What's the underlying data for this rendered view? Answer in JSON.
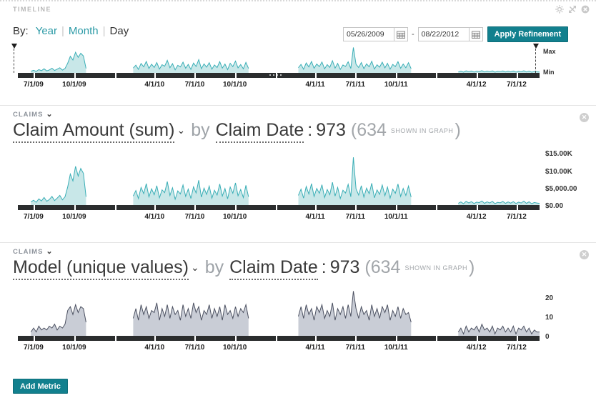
{
  "header": {
    "title": "TIMELINE"
  },
  "controls": {
    "by_label": "By:",
    "granularity": [
      {
        "label": "Year"
      },
      {
        "label": "Month"
      },
      {
        "label": "Day"
      }
    ],
    "date_from": "05/26/2009",
    "date_to": "08/22/2012",
    "range_separator": "-",
    "apply_label": "Apply Refinement"
  },
  "timeline": {
    "max_label": "Max",
    "min_label": "Min"
  },
  "panels": [
    {
      "source": "CLAIMS",
      "chevron": "⌄",
      "metric": "Claim Amount (sum)",
      "caret": "⌄",
      "by_word": "by",
      "dimension": "Claim Date",
      "colon": ":",
      "total": "973",
      "lparen": "(",
      "shown": "634",
      "shown_note": "SHOWN IN GRAPH",
      "rparen": ")"
    },
    {
      "source": "CLAIMS",
      "chevron": "⌄",
      "metric": "Model (unique values)",
      "caret": "⌄",
      "by_word": "by",
      "dimension": "Claim Date",
      "colon": ":",
      "total": "973",
      "lparen": "(",
      "shown": "634",
      "shown_note": "SHOWN IN GRAPH",
      "rparen": ")"
    }
  ],
  "add_metric_label": "Add Metric",
  "colors": {
    "accent": "#12808E",
    "teal_link": "#2B9AA6",
    "teal_line": "#39AEB6",
    "teal_fill": "#C8E7E8",
    "gray_line": "#4B5060",
    "gray_fill": "#C9CDD6",
    "axis_bar": "#2B2D2E"
  },
  "axis": {
    "x_ticks": [
      {
        "pct": 3.0,
        "label": "7/1/09"
      },
      {
        "pct": 10.8,
        "label": "10/1/09"
      },
      {
        "pct": 26.2,
        "label": "4/1/10"
      },
      {
        "pct": 33.9,
        "label": "7/1/10"
      },
      {
        "pct": 41.6,
        "label": "10/1/10"
      },
      {
        "pct": 57.0,
        "label": "4/1/11"
      },
      {
        "pct": 64.7,
        "label": "7/1/11"
      },
      {
        "pct": 72.5,
        "label": "10/1/11"
      },
      {
        "pct": 87.9,
        "label": "4/1/12"
      },
      {
        "pct": 95.6,
        "label": "7/1/12"
      }
    ],
    "bar_gaps": [
      3.0,
      10.8,
      18.6,
      26.2,
      33.9,
      41.6,
      49.4,
      57.0,
      64.7,
      72.5,
      80.1,
      87.9,
      95.6
    ]
  },
  "chart_data": [
    {
      "id": "timeline_overview",
      "type": "area",
      "title": "Timeline overview (Claim Amount by Claim Date)",
      "x_range": [
        "05/26/2009",
        "08/22/2012"
      ],
      "ymax": 15500,
      "height": 40,
      "y_axis_labels": [
        "Max",
        "Min"
      ],
      "gap_dots_pct": 48.2,
      "color_line": "#39AEB6",
      "color_fill": "#C8E7E8",
      "values": [
        null,
        null,
        null,
        null,
        null,
        900,
        1400,
        800,
        1800,
        1200,
        2200,
        1100,
        1600,
        2500,
        1300,
        2000,
        2800,
        1500,
        2400,
        5200,
        9000,
        7000,
        11200,
        8400,
        10600,
        9200,
        2400,
        null,
        null,
        null,
        null,
        null,
        null,
        null,
        null,
        null,
        null,
        null,
        null,
        null,
        null,
        null,
        null,
        null,
        2600,
        4200,
        1900,
        5100,
        3300,
        6200,
        2400,
        4700,
        3000,
        5600,
        2100,
        4400,
        3600,
        6800,
        2800,
        5000,
        1700,
        4100,
        3200,
        5800,
        2500,
        4600,
        1900,
        5300,
        3500,
        7200,
        2300,
        4900,
        3100,
        5500,
        2000,
        4300,
        2900,
        6100,
        2600,
        4800,
        1800,
        5200,
        3400,
        6400,
        2700,
        4500,
        2200,
        5700,
        2400,
        null,
        null,
        null,
        null,
        null,
        null,
        null,
        null,
        null,
        null,
        null,
        null,
        null,
        null,
        null,
        null,
        null,
        null,
        2800,
        4600,
        2000,
        5400,
        3200,
        6200,
        2500,
        4800,
        3400,
        5900,
        2200,
        4500,
        3000,
        6600,
        2600,
        5100,
        1900,
        4300,
        3500,
        6000,
        2400,
        13800,
        4700,
        2900,
        5600,
        2300,
        4900,
        3300,
        6300,
        2100,
        4400,
        3100,
        5800,
        2700,
        5200,
        2000,
        4600,
        3400,
        6100,
        2500,
        4800,
        2800,
        5500,
        2300,
        null,
        null,
        null,
        null,
        null,
        null,
        null,
        null,
        null,
        null,
        null,
        null,
        null,
        null,
        null,
        null,
        null,
        500,
        900,
        400,
        1100,
        600,
        1000,
        450,
        850,
        700,
        1200,
        500,
        950,
        600,
        1100,
        400,
        800,
        650,
        1050,
        500,
        900,
        550,
        1000,
        450,
        850,
        600,
        1150,
        500,
        950,
        400,
        750,
        600,
        500
      ]
    },
    {
      "id": "claim_amount",
      "type": "area",
      "title": "Claim Amount (sum) by Claim Date",
      "total": 973,
      "shown_in_graph": 634,
      "ymax": 15500,
      "height": 75,
      "color_line": "#39AEB6",
      "color_fill": "#C8E7E8",
      "y_ticks": [
        {
          "value": 15000,
          "label": "$15.00K"
        },
        {
          "value": 10000,
          "label": "$10.00K"
        },
        {
          "value": 5000,
          "label": "$5,000.00"
        },
        {
          "value": 0,
          "label": "$0.00"
        }
      ],
      "values": [
        null,
        null,
        null,
        null,
        null,
        900,
        1400,
        800,
        1800,
        1200,
        2200,
        1100,
        1600,
        2500,
        1300,
        2000,
        2800,
        1500,
        2400,
        5200,
        9000,
        7000,
        11200,
        8400,
        10600,
        9200,
        2400,
        null,
        null,
        null,
        null,
        null,
        null,
        null,
        null,
        null,
        null,
        null,
        null,
        null,
        null,
        null,
        null,
        null,
        2600,
        4200,
        1900,
        5100,
        3300,
        6200,
        2400,
        4700,
        3000,
        5600,
        2100,
        4400,
        3600,
        6800,
        2800,
        5000,
        1700,
        4100,
        3200,
        5800,
        2500,
        4600,
        1900,
        5300,
        3500,
        7200,
        2300,
        4900,
        3100,
        5500,
        2000,
        4300,
        2900,
        6100,
        2600,
        4800,
        1800,
        5200,
        3400,
        6400,
        2700,
        4500,
        2200,
        5700,
        2400,
        null,
        null,
        null,
        null,
        null,
        null,
        null,
        null,
        null,
        null,
        null,
        null,
        null,
        null,
        null,
        null,
        null,
        null,
        2800,
        4600,
        2000,
        5400,
        3200,
        6200,
        2500,
        4800,
        3400,
        5900,
        2200,
        4500,
        3000,
        6600,
        2600,
        5100,
        1900,
        4300,
        3500,
        6000,
        2400,
        13800,
        4700,
        2900,
        5600,
        2300,
        4900,
        3300,
        6300,
        2100,
        4400,
        3100,
        5800,
        2700,
        5200,
        2000,
        4600,
        3400,
        6100,
        2500,
        4800,
        2800,
        5500,
        2300,
        null,
        null,
        null,
        null,
        null,
        null,
        null,
        null,
        null,
        null,
        null,
        null,
        null,
        null,
        null,
        null,
        null,
        500,
        900,
        400,
        1100,
        600,
        1000,
        450,
        850,
        700,
        1200,
        500,
        950,
        600,
        1100,
        400,
        800,
        650,
        1050,
        500,
        900,
        550,
        1000,
        450,
        850,
        600,
        1150,
        500,
        950,
        400,
        750,
        600,
        500
      ]
    },
    {
      "id": "model_unique",
      "type": "area",
      "title": "Model (unique values) by Claim Date",
      "total": 973,
      "shown_in_graph": 634,
      "ymax": 25,
      "height": 68,
      "color_line": "#4B5060",
      "color_fill": "#C9CDD6",
      "y_ticks": [
        {
          "value": 20,
          "label": "20"
        },
        {
          "value": 10,
          "label": "10"
        },
        {
          "value": 0,
          "label": "0"
        }
      ],
      "values": [
        null,
        null,
        null,
        null,
        null,
        2,
        4,
        2,
        5,
        3,
        4,
        3,
        5,
        4,
        6,
        3,
        5,
        4,
        6,
        13,
        15,
        11,
        16,
        12,
        15,
        14,
        7,
        null,
        null,
        null,
        null,
        null,
        null,
        null,
        null,
        null,
        null,
        null,
        null,
        null,
        null,
        null,
        null,
        null,
        9,
        14,
        8,
        16,
        11,
        15,
        9,
        13,
        12,
        17,
        8,
        14,
        10,
        16,
        9,
        15,
        11,
        13,
        8,
        16,
        10,
        14,
        9,
        17,
        12,
        15,
        8,
        13,
        11,
        16,
        9,
        14,
        10,
        15,
        8,
        16,
        11,
        13,
        9,
        15,
        10,
        14,
        12,
        16,
        9,
        null,
        null,
        null,
        null,
        null,
        null,
        null,
        null,
        null,
        null,
        null,
        null,
        null,
        null,
        null,
        null,
        null,
        null,
        10,
        15,
        9,
        16,
        11,
        14,
        8,
        15,
        12,
        16,
        9,
        13,
        10,
        17,
        8,
        14,
        11,
        15,
        9,
        16,
        10,
        23,
        14,
        9,
        15,
        11,
        13,
        8,
        16,
        10,
        14,
        9,
        15,
        12,
        16,
        8,
        13,
        10,
        15,
        9,
        14,
        11,
        12,
        7,
        null,
        null,
        null,
        null,
        null,
        null,
        null,
        null,
        null,
        null,
        null,
        null,
        null,
        null,
        null,
        null,
        null,
        2,
        4,
        1,
        5,
        2,
        4,
        3,
        5,
        2,
        6,
        3,
        4,
        2,
        5,
        1,
        4,
        3,
        5,
        2,
        4,
        2,
        5,
        1,
        4,
        3,
        5,
        2,
        4,
        1,
        3,
        2,
        2
      ]
    }
  ]
}
